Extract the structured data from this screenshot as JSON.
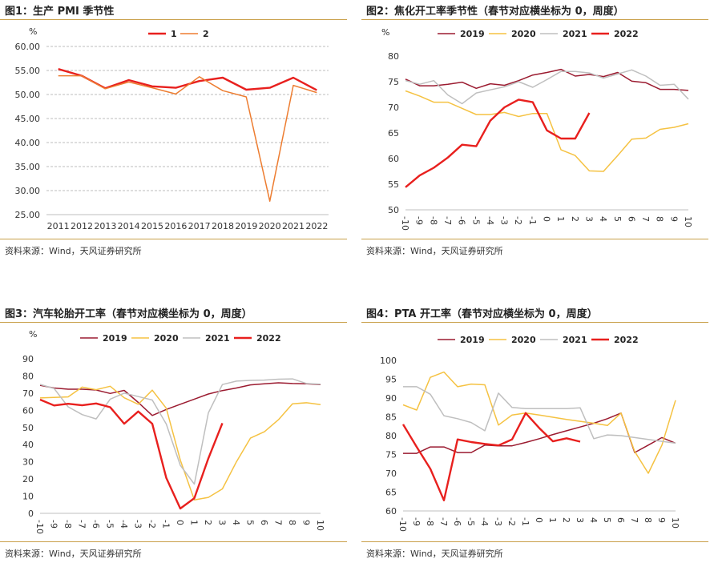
{
  "colors": {
    "dark_red": "#9b1b30",
    "gold": "#f5c242",
    "grey": "#bfbfbf",
    "red": "#e8201e",
    "orange": "#ed7d31",
    "rule": "#c9a04a"
  },
  "charts": [
    {
      "title": "图1：生产 PMI 季节性",
      "source": "资料来源：Wind，天风证券研究所",
      "chart_data": {
        "type": "line",
        "ylabel": "%",
        "ylim": [
          25,
          60
        ],
        "yticks": [
          "25.00",
          "30.00",
          "35.00",
          "40.00",
          "45.00",
          "50.00",
          "55.00",
          "60.00"
        ],
        "ytick_values": [
          25,
          30,
          35,
          40,
          45,
          50,
          55,
          60
        ],
        "grid": true,
        "legend_position": "top-center",
        "categories": [
          "2011",
          "2012",
          "2013",
          "2014",
          "2015",
          "2016",
          "2017",
          "2018",
          "2019",
          "2020",
          "2021",
          "2022"
        ],
        "series": [
          {
            "name": "1",
            "color": "#e8201e",
            "values": [
              55.3,
              53.9,
              51.3,
              53.0,
              51.7,
              51.4,
              52.8,
              53.5,
              51.0,
              51.4,
              53.5,
              50.9
            ]
          },
          {
            "name": "2",
            "color": "#ed7d31",
            "values": [
              53.9,
              53.9,
              51.2,
              52.6,
              51.4,
              50.1,
              53.7,
              50.8,
              49.5,
              27.8,
              51.9,
              50.4
            ]
          }
        ]
      }
    },
    {
      "title": "图2：焦化开工率季节性（春节对应横坐标为 0，周度）",
      "source": "资料来源：Wind，天风证券研究所",
      "chart_data": {
        "type": "line",
        "ylabel": "%",
        "ylim": [
          50,
          80
        ],
        "yticks": [
          "50",
          "55",
          "60",
          "65",
          "70",
          "75",
          "80"
        ],
        "ytick_values": [
          50,
          55,
          60,
          65,
          70,
          75,
          80
        ],
        "grid": false,
        "legend_position": "top",
        "categories": [
          "-10",
          "-9",
          "-8",
          "-7",
          "-6",
          "-5",
          "-4",
          "-3",
          "-2",
          "-1",
          "0",
          "1",
          "2",
          "3",
          "4",
          "5",
          "6",
          "7",
          "8",
          "9",
          "10"
        ],
        "series": [
          {
            "name": "2019",
            "color": "#9b1b30",
            "values": [
              75.5,
              74.2,
              74.2,
              74.5,
              74.9,
              73.7,
              74.6,
              74.3,
              75.2,
              76.3,
              76.8,
              77.4,
              76.1,
              76.4,
              76.0,
              76.8,
              75.1,
              74.8,
              73.5,
              73.5,
              73.3
            ]
          },
          {
            "name": "2020",
            "color": "#f5c242",
            "values": [
              73.2,
              72.2,
              71.0,
              71.0,
              69.8,
              68.6,
              68.6,
              69.0,
              68.2,
              68.8,
              68.8,
              61.7,
              60.6,
              57.6,
              57.5,
              60.6,
              63.8,
              64.0,
              65.7,
              66.1,
              66.8
            ]
          },
          {
            "name": "2021",
            "color": "#bfbfbf",
            "values": [
              75.2,
              74.5,
              75.2,
              72.4,
              70.7,
              72.8,
              73.4,
              74.0,
              75.0,
              73.9,
              75.4,
              77.0,
              77.0,
              76.7,
              75.7,
              76.5,
              77.3,
              76.1,
              74.3,
              74.5,
              71.6
            ]
          },
          {
            "name": "2022",
            "color": "#e8201e",
            "values": [
              54.4,
              56.7,
              58.2,
              60.2,
              62.7,
              62.4,
              67.4,
              70.0,
              71.5,
              71.0,
              65.5,
              63.9,
              63.9,
              68.9,
              null,
              null,
              null,
              null,
              null,
              null,
              null
            ]
          }
        ]
      }
    },
    {
      "title": "图3：汽车轮胎开工率（春节对应横坐标为 0，周度）",
      "source": "资料来源：Wind，天风证券研究所",
      "chart_data": {
        "type": "line",
        "ylabel": "%",
        "ylim": [
          0,
          90
        ],
        "yticks": [
          "0",
          "10",
          "20",
          "30",
          "40",
          "50",
          "60",
          "70",
          "80",
          "90"
        ],
        "ytick_values": [
          0,
          10,
          20,
          30,
          40,
          50,
          60,
          70,
          80,
          90
        ],
        "grid": false,
        "legend_position": "top",
        "categories": [
          "-10",
          "-9",
          "-8",
          "-7",
          "-6",
          "-5",
          "-4",
          "-3",
          "-2",
          "-1",
          "0",
          "1",
          "2",
          "3",
          "4",
          "5",
          "6",
          "7",
          "8",
          "9",
          "10"
        ],
        "series": [
          {
            "name": "2019",
            "color": "#9b1b30",
            "values": [
              74.5,
              73.0,
              72.3,
              72.3,
              71.8,
              69.8,
              71.6,
              64.6,
              57.0,
              60.5,
              63.5,
              66.5,
              69.5,
              71.5,
              73.0,
              74.8,
              75.4,
              76.0,
              75.6,
              75.4,
              75.0
            ]
          },
          {
            "name": "2020",
            "color": "#f5c242",
            "values": [
              67.2,
              67.5,
              67.8,
              73.5,
              72.0,
              74.0,
              67.3,
              63.5,
              71.7,
              61.2,
              31.0,
              7.8,
              9.3,
              14.2,
              30.0,
              43.8,
              47.5,
              54.5,
              63.8,
              64.4,
              63.3
            ]
          },
          {
            "name": "2021",
            "color": "#bfbfbf",
            "values": [
              75.1,
              72.7,
              62.0,
              57.5,
              55.0,
              66.5,
              70.0,
              68.0,
              66.0,
              52.0,
              28.0,
              17.0,
              58.5,
              75.0,
              77.0,
              77.4,
              77.6,
              78.1,
              78.3,
              75.6,
              75.2
            ]
          },
          {
            "name": "2022",
            "color": "#e8201e",
            "values": [
              66.2,
              62.8,
              63.8,
              62.9,
              64.0,
              61.8,
              52.2,
              59.3,
              52.2,
              20.6,
              2.8,
              8.8,
              32.0,
              52.5,
              null,
              null,
              null,
              null,
              null,
              null,
              null
            ]
          }
        ]
      }
    },
    {
      "title": "图4：PTA 开工率（春节对应横坐标为 0，周度）",
      "source": "资料来源：Wind，天风证券研究所",
      "chart_data": {
        "type": "line",
        "ylabel": "",
        "ylim": [
          60,
          100
        ],
        "yticks": [
          "60",
          "65",
          "70",
          "75",
          "80",
          "85",
          "90",
          "95",
          "100"
        ],
        "ytick_values": [
          60,
          65,
          70,
          75,
          80,
          85,
          90,
          95,
          100
        ],
        "grid": false,
        "legend_position": "top",
        "categories": [
          "-10",
          "-9",
          "-8",
          "-7",
          "-6",
          "-5",
          "-4",
          "-3",
          "-2",
          "-1",
          "0",
          "1",
          "2",
          "3",
          "4",
          "5",
          "6",
          "7",
          "8",
          "9",
          "10"
        ],
        "series": [
          {
            "name": "2019",
            "color": "#9b1b30",
            "values": [
              75.3,
              75.3,
              77.0,
              77.0,
              75.5,
              75.5,
              77.5,
              77.3,
              77.3,
              78.2,
              79.2,
              80.3,
              81.3,
              82.3,
              83.3,
              84.5,
              86.0,
              75.5,
              77.5,
              79.5,
              78.0
            ]
          },
          {
            "name": "2020",
            "color": "#f5c242",
            "values": [
              88.2,
              86.8,
              95.5,
              96.9,
              93.0,
              93.7,
              93.5,
              82.8,
              85.5,
              86.0,
              85.5,
              84.9,
              84.3,
              83.8,
              83.3,
              82.7,
              86.0,
              75.8,
              70.0,
              77.5,
              89.4
            ]
          },
          {
            "name": "2021",
            "color": "#bfbfbf",
            "values": [
              93.0,
              93.0,
              91.0,
              85.3,
              84.5,
              83.5,
              81.3,
              91.3,
              87.5,
              87.2,
              87.2,
              87.2,
              87.2,
              87.4,
              79.2,
              80.2,
              80.0,
              79.5,
              79.0,
              78.5,
              78.0
            ]
          },
          {
            "name": "2022",
            "color": "#e8201e",
            "values": [
              83.0,
              77.0,
              71.2,
              62.8,
              79.0,
              78.3,
              77.8,
              77.4,
              79.0,
              86.0,
              82.0,
              78.5,
              79.3,
              78.4,
              null,
              null,
              null,
              null,
              null,
              null,
              null
            ]
          }
        ]
      }
    }
  ]
}
